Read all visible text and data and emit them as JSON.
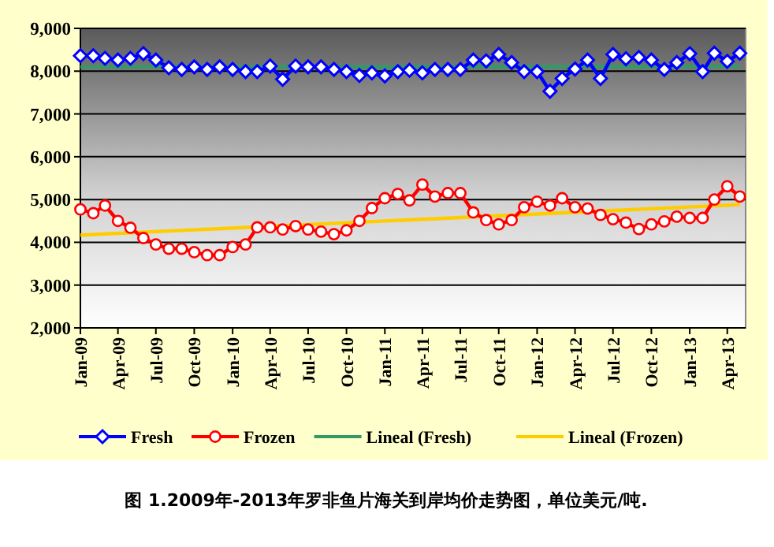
{
  "chart_data": {
    "type": "line",
    "annotations": [
      "图 1.2009年-2013年罗非鱼片海关到岸均价走势图，单位美元/吨."
    ],
    "x": [
      "2009-01",
      "2009-02",
      "2009-03",
      "2009-04",
      "2009-05",
      "2009-06",
      "2009-07",
      "2009-08",
      "2009-09",
      "2009-10",
      "2009-11",
      "2009-12",
      "2010-01",
      "2010-02",
      "2010-03",
      "2010-04",
      "2010-05",
      "2010-06",
      "2010-07",
      "2010-08",
      "2010-09",
      "2010-10",
      "2010-11",
      "2010-12",
      "2011-01",
      "2011-02",
      "2011-03",
      "2011-04",
      "2011-05",
      "2011-06",
      "2011-07",
      "2011-08",
      "2011-09",
      "2011-10",
      "2011-11",
      "2011-12",
      "2012-01",
      "2012-02",
      "2012-03",
      "2012-04",
      "2012-05",
      "2012-06",
      "2012-07",
      "2012-08",
      "2012-09",
      "2012-10",
      "2012-11",
      "2012-12",
      "2013-01",
      "2013-02",
      "2013-03",
      "2013-04",
      "2013-05"
    ],
    "series": [
      {
        "name": "Fresh",
        "color": "#0000ff",
        "marker": "diamond",
        "values": [
          8360,
          8360,
          8300,
          8260,
          8300,
          8410,
          8260,
          8080,
          8040,
          8100,
          8040,
          8100,
          8040,
          7990,
          7990,
          8120,
          7810,
          8120,
          8100,
          8100,
          8040,
          7990,
          7900,
          7960,
          7890,
          7990,
          8020,
          7960,
          8040,
          8040,
          8040,
          8260,
          8240,
          8390,
          8200,
          7990,
          7990,
          7530,
          7830,
          8050,
          8260,
          7830,
          8390,
          8290,
          8320,
          8260,
          8040,
          8200,
          8410,
          7990,
          8420,
          8230,
          8420
        ]
      },
      {
        "name": "Frozen",
        "color": "#ff0000",
        "marker": "circle",
        "values": [
          4770,
          4680,
          4860,
          4500,
          4340,
          4100,
          3950,
          3850,
          3850,
          3770,
          3700,
          3700,
          3890,
          3950,
          4350,
          4350,
          4300,
          4380,
          4300,
          4250,
          4190,
          4280,
          4500,
          4800,
          5030,
          5130,
          4980,
          5350,
          5070,
          5150,
          5150,
          4700,
          4520,
          4420,
          4520,
          4820,
          4950,
          4860,
          5030,
          4820,
          4790,
          4640,
          4540,
          4460,
          4310,
          4420,
          4490,
          4600,
          4570,
          4570,
          5000,
          5310,
          5070
        ]
      },
      {
        "name": "Lineal (Fresh)",
        "color": "#339966",
        "marker": "none",
        "x": [
          "2009-01",
          "2013-05"
        ],
        "values": [
          8100,
          8110
        ]
      },
      {
        "name": "Lineal (Frozen)",
        "color": "#ffcc00",
        "marker": "none",
        "x": [
          "2009-01",
          "2013-05"
        ],
        "values": [
          4170,
          4880
        ]
      }
    ],
    "xlim": [
      "2009-01",
      "2013-05-15"
    ],
    "xticks": [
      {
        "value": "2009-01",
        "label": "Jan-09"
      },
      {
        "value": "2009-04",
        "label": "Apr-09"
      },
      {
        "value": "2009-07",
        "label": "Jul-09"
      },
      {
        "value": "2009-10",
        "label": "Oct-09"
      },
      {
        "value": "2010-01",
        "label": "Jan-10"
      },
      {
        "value": "2010-04",
        "label": "Apr-10"
      },
      {
        "value": "2010-07",
        "label": "Jul-10"
      },
      {
        "value": "2010-10",
        "label": "Oct-10"
      },
      {
        "value": "2011-01",
        "label": "Jan-11"
      },
      {
        "value": "2011-04",
        "label": "Apr-11"
      },
      {
        "value": "2011-07",
        "label": "Jul-11"
      },
      {
        "value": "2011-10",
        "label": "Oct-11"
      },
      {
        "value": "2012-01",
        "label": "Jan-12"
      },
      {
        "value": "2012-04",
        "label": "Apr-12"
      },
      {
        "value": "2012-07",
        "label": "Jul-12"
      },
      {
        "value": "2012-10",
        "label": "Oct-12"
      },
      {
        "value": "2013-01",
        "label": "Jan-13"
      },
      {
        "value": "2013-04",
        "label": "Apr-13"
      }
    ],
    "ylim": [
      2000,
      9000
    ],
    "yticks": [
      {
        "value": 2000,
        "label": "2,000"
      },
      {
        "value": 3000,
        "label": "3,000"
      },
      {
        "value": 4000,
        "label": "4,000"
      },
      {
        "value": 5000,
        "label": "5,000"
      },
      {
        "value": 6000,
        "label": "6,000"
      },
      {
        "value": 7000,
        "label": "7,000"
      },
      {
        "value": 8000,
        "label": "8,000"
      },
      {
        "value": 9000,
        "label": "9,000"
      }
    ],
    "grid": "y",
    "legend": "bottom"
  }
}
